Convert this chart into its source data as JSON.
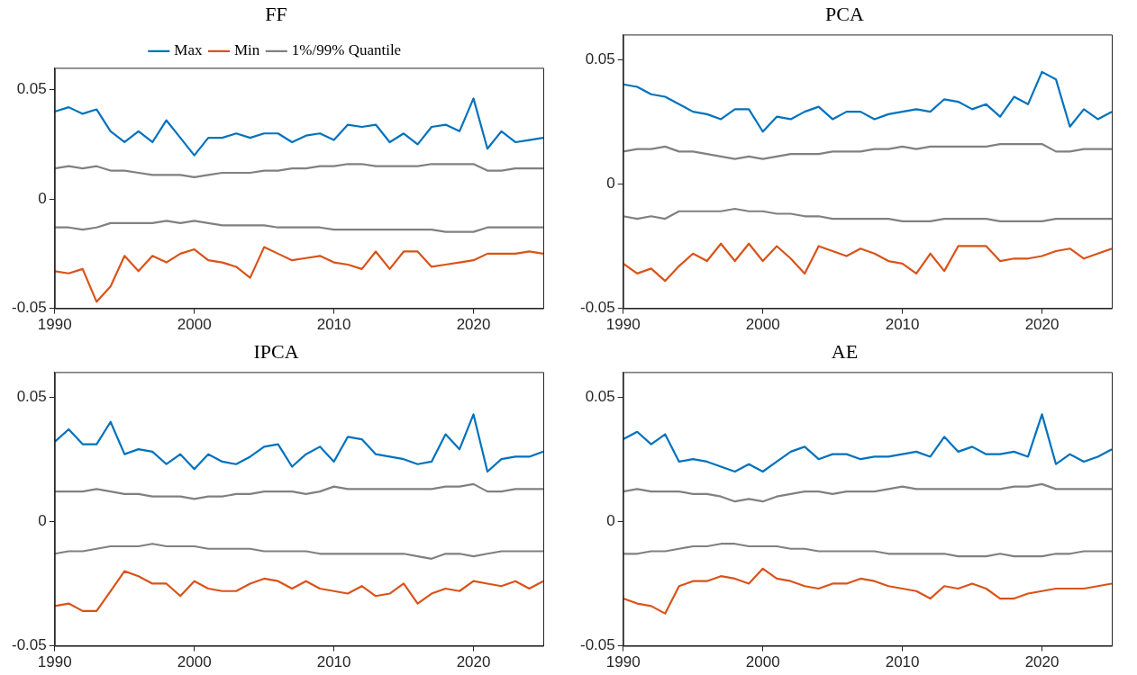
{
  "chart_data": [
    {
      "type": "line",
      "title": "FF",
      "legend": "top",
      "grid": false,
      "xlim": [
        1990,
        2025
      ],
      "xticks": [
        1990,
        2000,
        2010,
        2020
      ],
      "ylim": [
        -0.05,
        0.06
      ],
      "yticks": [
        -0.05,
        0,
        0.05
      ],
      "x": [
        1990,
        1991,
        1992,
        1993,
        1994,
        1995,
        1996,
        1997,
        1998,
        1999,
        2000,
        2001,
        2002,
        2003,
        2004,
        2005,
        2006,
        2007,
        2008,
        2009,
        2010,
        2011,
        2012,
        2013,
        2014,
        2015,
        2016,
        2017,
        2018,
        2019,
        2020,
        2021,
        2022,
        2023,
        2024,
        2025
      ],
      "series": [
        {
          "name": "Max",
          "color": "#0072bd",
          "values": [
            0.04,
            0.042,
            0.039,
            0.041,
            0.031,
            0.026,
            0.031,
            0.026,
            0.036,
            0.028,
            0.02,
            0.028,
            0.028,
            0.03,
            0.028,
            0.03,
            0.03,
            0.026,
            0.029,
            0.03,
            0.027,
            0.034,
            0.033,
            0.034,
            0.026,
            0.03,
            0.025,
            0.033,
            0.034,
            0.031,
            0.046,
            0.023,
            0.031,
            0.026,
            0.027,
            0.028
          ]
        },
        {
          "name": "Min",
          "color": "#d95319",
          "values": [
            -0.033,
            -0.034,
            -0.032,
            -0.047,
            -0.04,
            -0.026,
            -0.033,
            -0.026,
            -0.029,
            -0.025,
            -0.023,
            -0.028,
            -0.029,
            -0.031,
            -0.036,
            -0.022,
            -0.025,
            -0.028,
            -0.027,
            -0.026,
            -0.029,
            -0.03,
            -0.032,
            -0.024,
            -0.032,
            -0.024,
            -0.024,
            -0.031,
            -0.03,
            -0.029,
            -0.028,
            -0.025,
            -0.025,
            -0.025,
            -0.024,
            -0.025
          ]
        },
        {
          "name": "1%/99% Quantile",
          "color": "#808080",
          "values": [
            0.014,
            0.015,
            0.014,
            0.015,
            0.013,
            0.013,
            0.012,
            0.011,
            0.011,
            0.011,
            0.01,
            0.011,
            0.012,
            0.012,
            0.012,
            0.013,
            0.013,
            0.014,
            0.014,
            0.015,
            0.015,
            0.016,
            0.016,
            0.015,
            0.015,
            0.015,
            0.015,
            0.016,
            0.016,
            0.016,
            0.016,
            0.013,
            0.013,
            0.014,
            0.014,
            0.014
          ]
        },
        {
          "color": "#808080",
          "values": [
            -0.013,
            -0.013,
            -0.014,
            -0.013,
            -0.011,
            -0.011,
            -0.011,
            -0.011,
            -0.01,
            -0.011,
            -0.01,
            -0.011,
            -0.012,
            -0.012,
            -0.012,
            -0.012,
            -0.013,
            -0.013,
            -0.013,
            -0.013,
            -0.014,
            -0.014,
            -0.014,
            -0.014,
            -0.014,
            -0.014,
            -0.014,
            -0.014,
            -0.015,
            -0.015,
            -0.015,
            -0.013,
            -0.013,
            -0.013,
            -0.013,
            -0.013
          ]
        }
      ]
    },
    {
      "type": "line",
      "title": "PCA",
      "grid": false,
      "xlim": [
        1990,
        2025
      ],
      "xticks": [
        1990,
        2000,
        2010,
        2020
      ],
      "ylim": [
        -0.05,
        0.06
      ],
      "yticks": [
        -0.05,
        0,
        0.05
      ],
      "x": [
        1990,
        1991,
        1992,
        1993,
        1994,
        1995,
        1996,
        1997,
        1998,
        1999,
        2000,
        2001,
        2002,
        2003,
        2004,
        2005,
        2006,
        2007,
        2008,
        2009,
        2010,
        2011,
        2012,
        2013,
        2014,
        2015,
        2016,
        2017,
        2018,
        2019,
        2020,
        2021,
        2022,
        2023,
        2024,
        2025
      ],
      "series": [
        {
          "color": "#0072bd",
          "values": [
            0.04,
            0.039,
            0.036,
            0.035,
            0.032,
            0.029,
            0.028,
            0.026,
            0.03,
            0.03,
            0.021,
            0.027,
            0.026,
            0.029,
            0.031,
            0.026,
            0.029,
            0.029,
            0.026,
            0.028,
            0.029,
            0.03,
            0.029,
            0.034,
            0.033,
            0.03,
            0.032,
            0.027,
            0.035,
            0.032,
            0.045,
            0.042,
            0.023,
            0.03,
            0.026,
            0.029
          ]
        },
        {
          "color": "#d95319",
          "values": [
            -0.032,
            -0.036,
            -0.034,
            -0.039,
            -0.033,
            -0.028,
            -0.031,
            -0.024,
            -0.031,
            -0.024,
            -0.031,
            -0.025,
            -0.03,
            -0.036,
            -0.025,
            -0.027,
            -0.029,
            -0.026,
            -0.028,
            -0.031,
            -0.032,
            -0.036,
            -0.028,
            -0.035,
            -0.025,
            -0.025,
            -0.025,
            -0.031,
            -0.03,
            -0.03,
            -0.029,
            -0.027,
            -0.026,
            -0.03,
            -0.028,
            -0.026
          ]
        },
        {
          "color": "#808080",
          "values": [
            0.013,
            0.014,
            0.014,
            0.015,
            0.013,
            0.013,
            0.012,
            0.011,
            0.01,
            0.011,
            0.01,
            0.011,
            0.012,
            0.012,
            0.012,
            0.013,
            0.013,
            0.013,
            0.014,
            0.014,
            0.015,
            0.014,
            0.015,
            0.015,
            0.015,
            0.015,
            0.015,
            0.016,
            0.016,
            0.016,
            0.016,
            0.013,
            0.013,
            0.014,
            0.014,
            0.014
          ]
        },
        {
          "color": "#808080",
          "values": [
            -0.013,
            -0.014,
            -0.013,
            -0.014,
            -0.011,
            -0.011,
            -0.011,
            -0.011,
            -0.01,
            -0.011,
            -0.011,
            -0.012,
            -0.012,
            -0.013,
            -0.013,
            -0.014,
            -0.014,
            -0.014,
            -0.014,
            -0.014,
            -0.015,
            -0.015,
            -0.015,
            -0.014,
            -0.014,
            -0.014,
            -0.014,
            -0.015,
            -0.015,
            -0.015,
            -0.015,
            -0.014,
            -0.014,
            -0.014,
            -0.014,
            -0.014
          ]
        }
      ]
    },
    {
      "type": "line",
      "title": "IPCA",
      "grid": false,
      "xlim": [
        1990,
        2025
      ],
      "xticks": [
        1990,
        2000,
        2010,
        2020
      ],
      "ylim": [
        -0.05,
        0.06
      ],
      "yticks": [
        -0.05,
        0,
        0.05
      ],
      "x": [
        1990,
        1991,
        1992,
        1993,
        1994,
        1995,
        1996,
        1997,
        1998,
        1999,
        2000,
        2001,
        2002,
        2003,
        2004,
        2005,
        2006,
        2007,
        2008,
        2009,
        2010,
        2011,
        2012,
        2013,
        2014,
        2015,
        2016,
        2017,
        2018,
        2019,
        2020,
        2021,
        2022,
        2023,
        2024,
        2025
      ],
      "series": [
        {
          "color": "#0072bd",
          "values": [
            0.032,
            0.037,
            0.031,
            0.031,
            0.04,
            0.027,
            0.029,
            0.028,
            0.023,
            0.027,
            0.021,
            0.027,
            0.024,
            0.023,
            0.026,
            0.03,
            0.031,
            0.022,
            0.027,
            0.03,
            0.024,
            0.034,
            0.033,
            0.027,
            0.026,
            0.025,
            0.023,
            0.024,
            0.035,
            0.029,
            0.043,
            0.02,
            0.025,
            0.026,
            0.026,
            0.028
          ]
        },
        {
          "color": "#d95319",
          "values": [
            -0.034,
            -0.033,
            -0.036,
            -0.036,
            -0.028,
            -0.02,
            -0.022,
            -0.025,
            -0.025,
            -0.03,
            -0.024,
            -0.027,
            -0.028,
            -0.028,
            -0.025,
            -0.023,
            -0.024,
            -0.027,
            -0.024,
            -0.027,
            -0.028,
            -0.029,
            -0.026,
            -0.03,
            -0.029,
            -0.025,
            -0.033,
            -0.029,
            -0.027,
            -0.028,
            -0.024,
            -0.025,
            -0.026,
            -0.024,
            -0.027,
            -0.024
          ]
        },
        {
          "color": "#808080",
          "values": [
            0.012,
            0.012,
            0.012,
            0.013,
            0.012,
            0.011,
            0.011,
            0.01,
            0.01,
            0.01,
            0.009,
            0.01,
            0.01,
            0.011,
            0.011,
            0.012,
            0.012,
            0.012,
            0.011,
            0.012,
            0.014,
            0.013,
            0.013,
            0.013,
            0.013,
            0.013,
            0.013,
            0.013,
            0.014,
            0.014,
            0.015,
            0.012,
            0.012,
            0.013,
            0.013,
            0.013
          ]
        },
        {
          "color": "#808080",
          "values": [
            -0.013,
            -0.012,
            -0.012,
            -0.011,
            -0.01,
            -0.01,
            -0.01,
            -0.009,
            -0.01,
            -0.01,
            -0.01,
            -0.011,
            -0.011,
            -0.011,
            -0.011,
            -0.012,
            -0.012,
            -0.012,
            -0.012,
            -0.013,
            -0.013,
            -0.013,
            -0.013,
            -0.013,
            -0.013,
            -0.013,
            -0.014,
            -0.015,
            -0.013,
            -0.013,
            -0.014,
            -0.013,
            -0.012,
            -0.012,
            -0.012,
            -0.012
          ]
        }
      ]
    },
    {
      "type": "line",
      "title": "AE",
      "grid": false,
      "xlim": [
        1990,
        2025
      ],
      "xticks": [
        1990,
        2000,
        2010,
        2020
      ],
      "ylim": [
        -0.05,
        0.06
      ],
      "yticks": [
        -0.05,
        0,
        0.05
      ],
      "x": [
        1990,
        1991,
        1992,
        1993,
        1994,
        1995,
        1996,
        1997,
        1998,
        1999,
        2000,
        2001,
        2002,
        2003,
        2004,
        2005,
        2006,
        2007,
        2008,
        2009,
        2010,
        2011,
        2012,
        2013,
        2014,
        2015,
        2016,
        2017,
        2018,
        2019,
        2020,
        2021,
        2022,
        2023,
        2024,
        2025
      ],
      "series": [
        {
          "color": "#0072bd",
          "values": [
            0.033,
            0.036,
            0.031,
            0.035,
            0.024,
            0.025,
            0.024,
            0.022,
            0.02,
            0.023,
            0.02,
            0.024,
            0.028,
            0.03,
            0.025,
            0.027,
            0.027,
            0.025,
            0.026,
            0.026,
            0.027,
            0.028,
            0.026,
            0.034,
            0.028,
            0.03,
            0.027,
            0.027,
            0.028,
            0.026,
            0.043,
            0.023,
            0.027,
            0.024,
            0.026,
            0.029
          ]
        },
        {
          "color": "#d95319",
          "values": [
            -0.031,
            -0.033,
            -0.034,
            -0.037,
            -0.026,
            -0.024,
            -0.024,
            -0.022,
            -0.023,
            -0.025,
            -0.019,
            -0.023,
            -0.024,
            -0.026,
            -0.027,
            -0.025,
            -0.025,
            -0.023,
            -0.024,
            -0.026,
            -0.027,
            -0.028,
            -0.031,
            -0.026,
            -0.027,
            -0.025,
            -0.027,
            -0.031,
            -0.031,
            -0.029,
            -0.028,
            -0.027,
            -0.027,
            -0.027,
            -0.026,
            -0.025
          ]
        },
        {
          "color": "#808080",
          "values": [
            0.012,
            0.013,
            0.012,
            0.012,
            0.012,
            0.011,
            0.011,
            0.01,
            0.008,
            0.009,
            0.008,
            0.01,
            0.011,
            0.012,
            0.012,
            0.011,
            0.012,
            0.012,
            0.012,
            0.013,
            0.014,
            0.013,
            0.013,
            0.013,
            0.013,
            0.013,
            0.013,
            0.013,
            0.014,
            0.014,
            0.015,
            0.013,
            0.013,
            0.013,
            0.013,
            0.013
          ]
        },
        {
          "color": "#808080",
          "values": [
            -0.013,
            -0.013,
            -0.012,
            -0.012,
            -0.011,
            -0.01,
            -0.01,
            -0.009,
            -0.009,
            -0.01,
            -0.01,
            -0.01,
            -0.011,
            -0.011,
            -0.012,
            -0.012,
            -0.012,
            -0.012,
            -0.012,
            -0.013,
            -0.013,
            -0.013,
            -0.013,
            -0.013,
            -0.014,
            -0.014,
            -0.014,
            -0.013,
            -0.014,
            -0.014,
            -0.014,
            -0.013,
            -0.013,
            -0.012,
            -0.012,
            -0.012
          ]
        }
      ]
    }
  ]
}
